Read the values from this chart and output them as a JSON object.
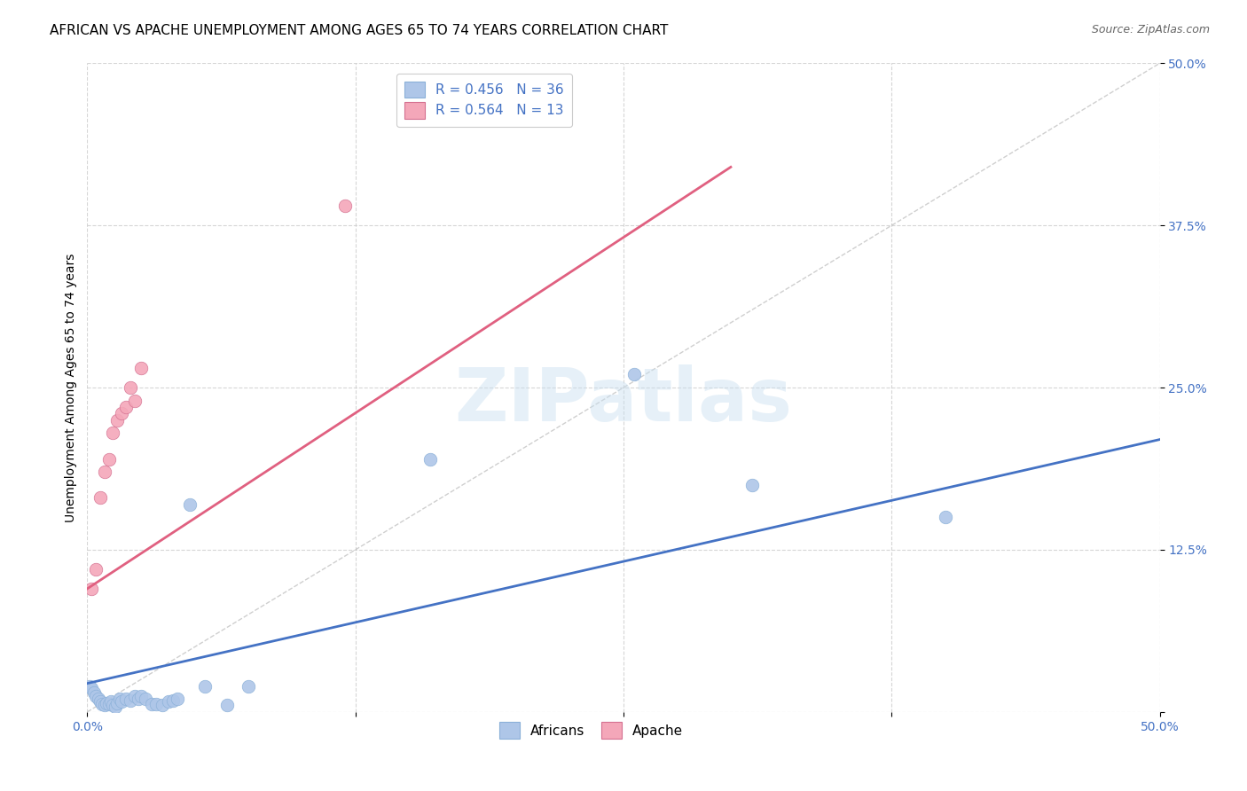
{
  "title": "AFRICAN VS APACHE UNEMPLOYMENT AMONG AGES 65 TO 74 YEARS CORRELATION CHART",
  "source": "Source: ZipAtlas.com",
  "ylabel": "Unemployment Among Ages 65 to 74 years",
  "xlim": [
    0,
    0.5
  ],
  "ylim": [
    0,
    0.5
  ],
  "africans_x": [
    0.001,
    0.002,
    0.003,
    0.004,
    0.005,
    0.006,
    0.007,
    0.008,
    0.009,
    0.01,
    0.011,
    0.012,
    0.013,
    0.014,
    0.015,
    0.016,
    0.018,
    0.02,
    0.022,
    0.024,
    0.025,
    0.027,
    0.03,
    0.032,
    0.035,
    0.038,
    0.04,
    0.042,
    0.048,
    0.055,
    0.065,
    0.075,
    0.16,
    0.255,
    0.31,
    0.4
  ],
  "africans_y": [
    0.02,
    0.018,
    0.015,
    0.012,
    0.01,
    0.008,
    0.006,
    0.005,
    0.007,
    0.006,
    0.008,
    0.005,
    0.004,
    0.007,
    0.01,
    0.008,
    0.01,
    0.009,
    0.012,
    0.01,
    0.012,
    0.01,
    0.006,
    0.006,
    0.005,
    0.008,
    0.009,
    0.01,
    0.16,
    0.02,
    0.005,
    0.02,
    0.195,
    0.26,
    0.175,
    0.15
  ],
  "apache_x": [
    0.002,
    0.004,
    0.006,
    0.008,
    0.01,
    0.012,
    0.014,
    0.016,
    0.018,
    0.02,
    0.022,
    0.025,
    0.12
  ],
  "apache_y": [
    0.095,
    0.11,
    0.165,
    0.185,
    0.195,
    0.215,
    0.225,
    0.23,
    0.235,
    0.25,
    0.24,
    0.265,
    0.39
  ],
  "africans_color": "#aec6e8",
  "apache_color": "#f4a7b9",
  "africans_line_color": "#4472c4",
  "apache_line_color": "#e06080",
  "africans_R": 0.456,
  "africans_N": 36,
  "apache_R": 0.564,
  "apache_N": 13,
  "legend_label_africans": "Africans",
  "legend_label_apache": "Apache",
  "watermark": "ZIPatlas",
  "africans_line_x0": 0.0,
  "africans_line_y0": 0.022,
  "africans_line_x1": 0.5,
  "africans_line_y1": 0.21,
  "apache_line_x0": 0.0,
  "apache_line_y0": 0.095,
  "apache_line_x1": 0.3,
  "apache_line_y1": 0.42,
  "diag_line": true,
  "title_fontsize": 11,
  "label_fontsize": 10,
  "tick_fontsize": 10,
  "source_fontsize": 9
}
